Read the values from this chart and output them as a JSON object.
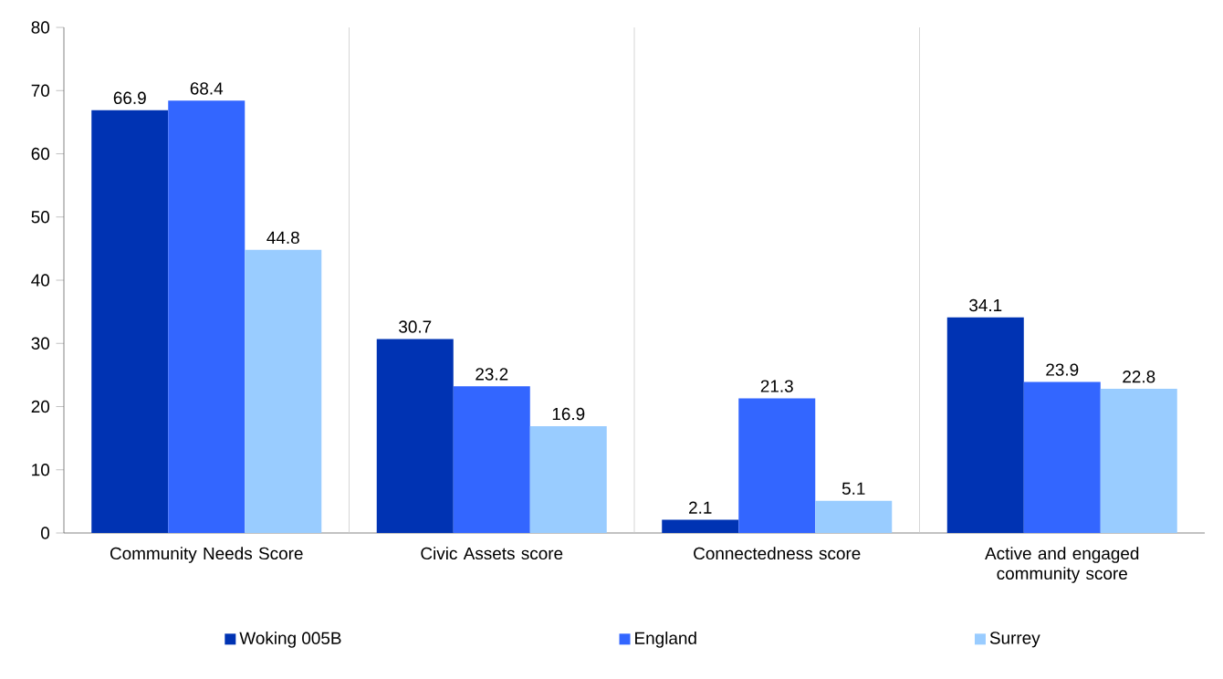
{
  "chart_data": {
    "type": "bar",
    "categories": [
      "Community Needs Score",
      "Civic Assets score",
      "Connectedness score",
      "Active and engaged community score"
    ],
    "series": [
      {
        "name": "Woking 005B",
        "color": "#0033b3",
        "values": [
          66.9,
          30.7,
          2.1,
          34.1
        ]
      },
      {
        "name": "England",
        "color": "#3366ff",
        "values": [
          68.4,
          23.2,
          21.3,
          23.9
        ]
      },
      {
        "name": "Surrey",
        "color": "#99ccff",
        "values": [
          44.8,
          16.9,
          5.1,
          22.8
        ]
      }
    ],
    "ylim": [
      0,
      80
    ],
    "yticks": [
      0,
      10,
      20,
      30,
      40,
      50,
      60,
      70,
      80
    ],
    "grid": "x",
    "legend": "bottom",
    "data_labels": true
  }
}
